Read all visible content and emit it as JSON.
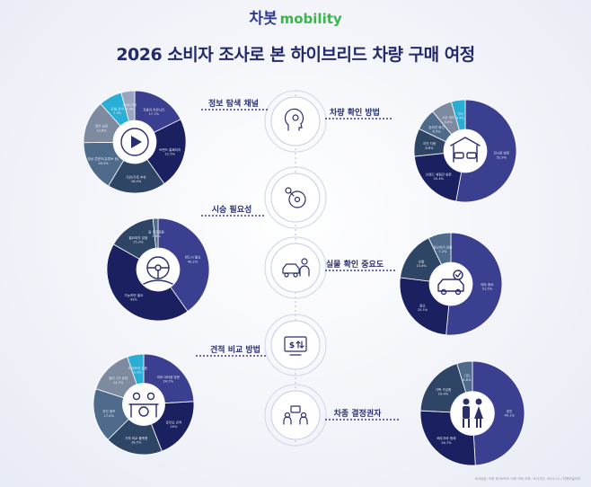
{
  "header": {
    "logo_korean": "차봇",
    "logo_latin": "mobility",
    "title": "2026 소비자 조사로 본 하이브리드 차량 구매 여정"
  },
  "footnote": "조사대상: 차봇 하이브리드 차량 구매 고객 / 조사기간: 2025.12 / 차봇모빌리티",
  "colors": {
    "navy": "#1a2060",
    "indigo": "#3b3f8f",
    "slate": "#2f4565",
    "steel": "#4f6b8c",
    "cyan": "#29aed6",
    "grey": "#7d8aa0",
    "accent": "#3b3f8f"
  },
  "center_icons": [
    "person-search-icon",
    "steering-wheel-icon",
    "car-inspection-icon",
    "price-compare-icon",
    "decision-maker-icon"
  ],
  "chart_data": [
    {
      "type": "pie",
      "title": "정보 탐색 채널",
      "icon": "play-video-icon",
      "slices": [
        {
          "label": "자동차 커뮤니티",
          "value": 17.7
        },
        {
          "label": "브랜드 홈페이지",
          "value": 22.5
        },
        {
          "label": "지인/가족 추천",
          "value": 18.4
        },
        {
          "label": "영상 콘텐츠(유튜브 등)",
          "value": 16.2
        },
        {
          "label": "딜러 상담",
          "value": 13.6
        },
        {
          "label": "포털 검색",
          "value": 7.3
        },
        {
          "label": "SNS/기타",
          "value": 4.3
        }
      ]
    },
    {
      "type": "pie",
      "title": "차량 확인 방법",
      "icon": "showroom-icon",
      "slices": [
        {
          "label": "전시장 방문",
          "value": 52.9
        },
        {
          "label": "브랜드 체험관 방문",
          "value": 20.4
        },
        {
          "label": "지인 차량",
          "value": 8.8
        },
        {
          "label": "온라인 확인",
          "value": 6.9
        },
        {
          "label": "시승 센터",
          "value": 6.6
        },
        {
          "label": "기타",
          "value": 4.4
        }
      ]
    },
    {
      "type": "pie",
      "title": "시승 필요성",
      "icon": "steering-wheel-icon",
      "slices": [
        {
          "label": "반드시 필요",
          "value": 40.2
        },
        {
          "label": "가능하면 필요",
          "value": 43.0
        },
        {
          "label": "필요하지 않음",
          "value": 15.2
        },
        {
          "label": "잘 모르겠음",
          "value": 1.6
        }
      ]
    },
    {
      "type": "pie",
      "title": "실물 확인 중요도",
      "icon": "car-check-icon",
      "slices": [
        {
          "label": "매우 중요",
          "value": 51.5
        },
        {
          "label": "중요",
          "value": 25.5
        },
        {
          "label": "보통",
          "value": 15.8
        },
        {
          "label": "중요하지 않음",
          "value": 7.2
        }
      ]
    },
    {
      "type": "pie",
      "title": "견적 비교 방법",
      "icon": "consulting-icon",
      "slices": [
        {
          "label": "여러 대리점 방문",
          "value": 24.1
        },
        {
          "label": "온라인 견적",
          "value": 20.0
        },
        {
          "label": "가격 비교 플랫폼",
          "value": 18.5
        },
        {
          "label": "지인 정보",
          "value": 17.4
        },
        {
          "label": "딜러 1곳 상담",
          "value": 14.7
        },
        {
          "label": "비교하지 않음",
          "value": 5.3
        }
      ]
    },
    {
      "type": "pie",
      "title": "차종 결정권자",
      "icon": "couple-icon",
      "slices": [
        {
          "label": "본인",
          "value": 49.1
        },
        {
          "label": "배우자와 함께",
          "value": 26.7
        },
        {
          "label": "가족 구성원",
          "value": 19.4
        },
        {
          "label": "기타",
          "value": 4.8
        }
      ]
    }
  ]
}
